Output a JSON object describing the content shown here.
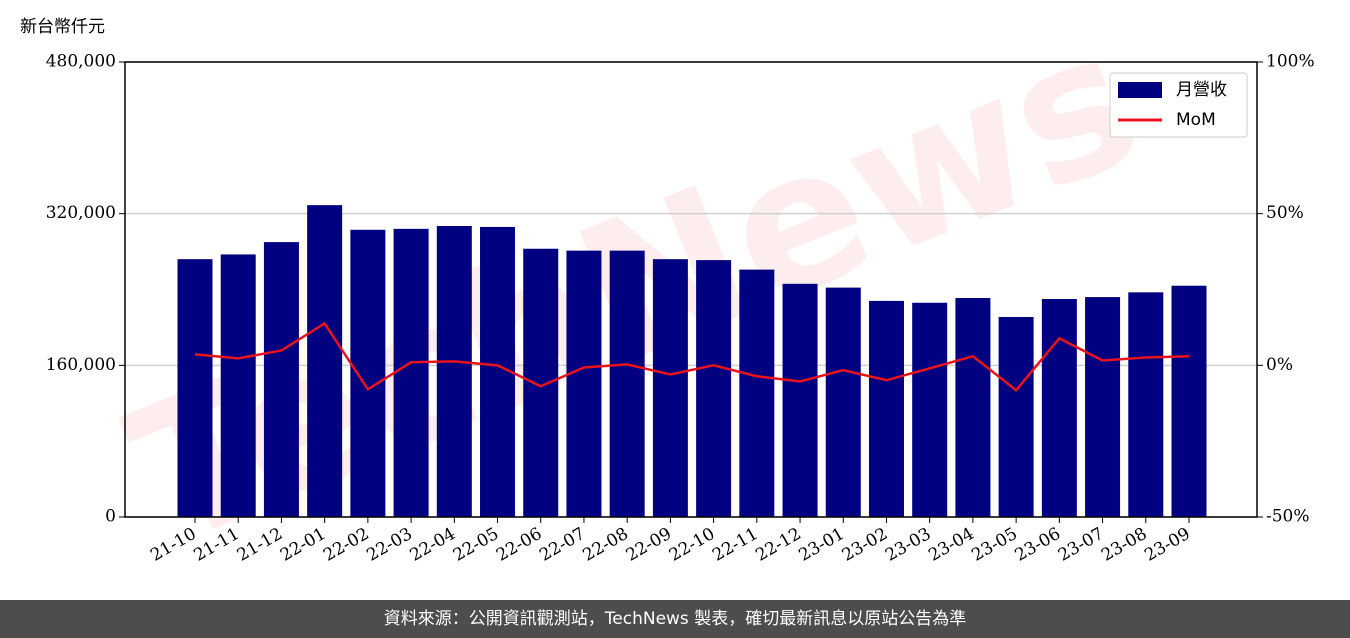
{
  "chart_data": {
    "type": "bar",
    "y_axis_label": "新台幣仟元",
    "watermark": "TechNews",
    "source": "資料來源：公開資訊觀測站，TechNews 製表，確切最新訊息以原站公告為準",
    "categories": [
      "21-10",
      "21-11",
      "21-12",
      "22-01",
      "22-02",
      "22-03",
      "22-04",
      "22-05",
      "22-06",
      "22-07",
      "22-08",
      "22-09",
      "22-10",
      "22-11",
      "22-12",
      "23-01",
      "23-02",
      "23-03",
      "23-04",
      "23-05",
      "23-06",
      "23-07",
      "23-08",
      "23-09"
    ],
    "series": [
      {
        "name": "月營收",
        "color": "#000080",
        "type": "bar",
        "values": [
          272000,
          277000,
          290000,
          329000,
          303000,
          304000,
          307000,
          306000,
          283000,
          281000,
          281000,
          272000,
          271000,
          261000,
          246000,
          242000,
          228000,
          226000,
          231000,
          211000,
          230000,
          232000,
          237000,
          244000
        ]
      },
      {
        "name": "MoM",
        "color": "#e8141b",
        "type": "line",
        "axis": "y2",
        "values": [
          3.6,
          2.3,
          4.9,
          13.8,
          -7.9,
          1.0,
          1.3,
          0,
          -6.9,
          -0.7,
          0.3,
          -3.0,
          0,
          -3.6,
          -5.3,
          -1.6,
          -4.9,
          -1.0,
          3.0,
          -8.2,
          8.9,
          1.6,
          2.6,
          3.0
        ]
      }
    ],
    "ylim": [
      0,
      480000
    ],
    "yticks": [
      {
        "value": 0,
        "label": "0"
      },
      {
        "value": 160000,
        "label": "160,000"
      },
      {
        "value": 320000,
        "label": "320,000"
      },
      {
        "value": 480000,
        "label": "480,000"
      }
    ],
    "y2lim": [
      -50,
      100
    ],
    "y2ticks": [
      {
        "value": -50,
        "label": "-50%"
      },
      {
        "value": 0,
        "label": "0%"
      },
      {
        "value": 50,
        "label": "50%"
      },
      {
        "value": 100,
        "label": "100%"
      }
    ],
    "grid": true,
    "legend": "upper right"
  }
}
